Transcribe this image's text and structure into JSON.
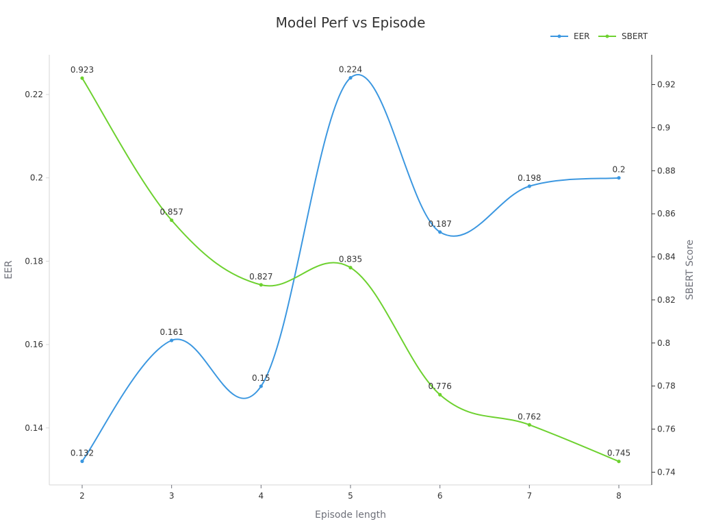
{
  "chart_data": {
    "type": "line",
    "title": "Model Perf vs Episode",
    "xlabel": "Episode length",
    "ylabel_left": "EER",
    "ylabel_right": "SBERT Score",
    "x": [
      2,
      3,
      4,
      5,
      6,
      7,
      8
    ],
    "x_ticks": [
      "2",
      "3",
      "4",
      "5",
      "6",
      "7",
      "8"
    ],
    "y_left_range": [
      0.13,
      0.23
    ],
    "y_left_ticks": [
      "0.14",
      "0.16",
      "0.18",
      "0.2",
      "0.22"
    ],
    "y_right_range": [
      0.74,
      0.93
    ],
    "y_right_ticks": [
      "0.74",
      "0.76",
      "0.78",
      "0.8",
      "0.82",
      "0.84",
      "0.86",
      "0.88",
      "0.9",
      "0.92"
    ],
    "grid": false,
    "legend_position": "top-right",
    "series": [
      {
        "name": "EER",
        "axis": "left",
        "color": "#3b97e0",
        "values": [
          0.132,
          0.161,
          0.15,
          0.224,
          0.187,
          0.198,
          0.2
        ],
        "labels": [
          "0.132",
          "0.161",
          "0.15",
          "0.224",
          "0.187",
          "0.198",
          "0.2"
        ]
      },
      {
        "name": "SBERT",
        "axis": "right",
        "color": "#6dd12f",
        "values": [
          0.923,
          0.857,
          0.827,
          0.835,
          0.776,
          0.762,
          0.745
        ],
        "labels": [
          "0.923",
          "0.857",
          "0.827",
          "0.835",
          "0.776",
          "0.762",
          "0.745"
        ]
      }
    ]
  }
}
